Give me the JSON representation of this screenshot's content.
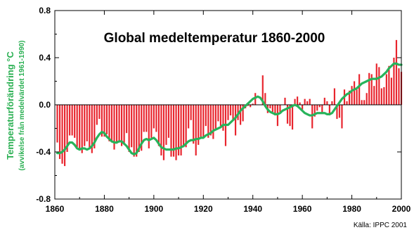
{
  "chart_data": {
    "type": "bar",
    "title": "Global medeltemperatur 1860-2000",
    "ylabel": "Temperaturförändring °C",
    "ylabel_sub": "(avvikelse från medelvärdet 1961-1990)",
    "source": "Källa: IPPC 2001",
    "xlim": [
      1860,
      2000
    ],
    "ylim": [
      -0.8,
      0.8
    ],
    "x_ticks": [
      1860,
      1880,
      1900,
      1920,
      1940,
      1960,
      1980,
      2000
    ],
    "y_ticks": [
      -0.8,
      -0.4,
      0.0,
      0.4,
      0.8
    ],
    "y_tick_labels": [
      "-0.8",
      "-0.4",
      "0.0",
      "0.4",
      "0.8"
    ],
    "grid": false,
    "colors": {
      "bars": "#e8252e",
      "smooth_line": "#27b35a",
      "axis": "#000000"
    },
    "series": [
      {
        "kind": "bar",
        "x": [
          1861,
          1862,
          1863,
          1864,
          1865,
          1866,
          1867,
          1868,
          1869,
          1870,
          1871,
          1872,
          1873,
          1874,
          1875,
          1876,
          1877,
          1878,
          1879,
          1880,
          1881,
          1882,
          1883,
          1884,
          1885,
          1886,
          1887,
          1888,
          1889,
          1890,
          1891,
          1892,
          1893,
          1894,
          1895,
          1896,
          1897,
          1898,
          1899,
          1900,
          1901,
          1902,
          1903,
          1904,
          1905,
          1906,
          1907,
          1908,
          1909,
          1910,
          1911,
          1912,
          1913,
          1914,
          1915,
          1916,
          1917,
          1918,
          1919,
          1920,
          1921,
          1922,
          1923,
          1924,
          1925,
          1926,
          1927,
          1928,
          1929,
          1930,
          1931,
          1932,
          1933,
          1934,
          1935,
          1936,
          1937,
          1938,
          1939,
          1940,
          1941,
          1942,
          1943,
          1944,
          1945,
          1946,
          1947,
          1948,
          1949,
          1950,
          1951,
          1952,
          1953,
          1954,
          1955,
          1956,
          1957,
          1958,
          1959,
          1960,
          1961,
          1962,
          1963,
          1964,
          1965,
          1966,
          1967,
          1968,
          1969,
          1970,
          1971,
          1972,
          1973,
          1974,
          1975,
          1976,
          1977,
          1978,
          1979,
          1980,
          1981,
          1982,
          1983,
          1984,
          1985,
          1986,
          1987,
          1988,
          1989,
          1990,
          1991,
          1992,
          1993,
          1994,
          1995,
          1996,
          1997,
          1998,
          1999,
          2000
        ],
        "values": [
          -0.32,
          -0.46,
          -0.5,
          -0.52,
          -0.4,
          -0.26,
          -0.26,
          -0.28,
          -0.36,
          -0.38,
          -0.41,
          -0.35,
          -0.31,
          -0.36,
          -0.41,
          -0.37,
          -0.17,
          -0.12,
          -0.27,
          -0.27,
          -0.25,
          -0.31,
          -0.32,
          -0.38,
          -0.33,
          -0.32,
          -0.35,
          -0.34,
          -0.24,
          -0.4,
          -0.36,
          -0.44,
          -0.44,
          -0.4,
          -0.39,
          -0.23,
          -0.23,
          -0.37,
          -0.28,
          -0.2,
          -0.23,
          -0.35,
          -0.43,
          -0.47,
          -0.34,
          -0.28,
          -0.44,
          -0.44,
          -0.47,
          -0.43,
          -0.43,
          -0.36,
          -0.36,
          -0.2,
          -0.13,
          -0.33,
          -0.43,
          -0.34,
          -0.28,
          -0.27,
          -0.18,
          -0.28,
          -0.26,
          -0.29,
          -0.21,
          -0.14,
          -0.18,
          -0.22,
          -0.35,
          -0.13,
          -0.09,
          -0.13,
          -0.26,
          -0.13,
          -0.17,
          -0.14,
          -0.03,
          -0.01,
          -0.02,
          0.01,
          0.1,
          0.0,
          0.0,
          0.25,
          0.1,
          -0.07,
          -0.03,
          -0.06,
          -0.09,
          -0.18,
          -0.06,
          0.0,
          0.06,
          -0.16,
          -0.18,
          -0.21,
          0.05,
          0.07,
          0.02,
          -0.04,
          0.05,
          0.03,
          0.05,
          -0.2,
          -0.1,
          -0.05,
          -0.02,
          -0.07,
          0.06,
          0.03,
          -0.09,
          0.03,
          0.14,
          -0.12,
          -0.11,
          -0.2,
          0.13,
          0.03,
          0.12,
          0.16,
          0.2,
          0.13,
          0.26,
          0.04,
          0.04,
          0.1,
          0.27,
          0.26,
          0.16,
          0.35,
          0.32,
          0.14,
          0.15,
          0.26,
          0.33,
          0.23,
          0.4,
          0.55,
          0.31,
          0.28
        ]
      },
      {
        "kind": "line",
        "x": [
          1861,
          1862,
          1863,
          1864,
          1865,
          1866,
          1867,
          1868,
          1869,
          1870,
          1871,
          1872,
          1873,
          1874,
          1875,
          1876,
          1877,
          1878,
          1879,
          1880,
          1881,
          1882,
          1883,
          1884,
          1885,
          1886,
          1887,
          1888,
          1889,
          1890,
          1891,
          1892,
          1893,
          1894,
          1895,
          1896,
          1897,
          1898,
          1899,
          1900,
          1901,
          1902,
          1903,
          1904,
          1905,
          1906,
          1907,
          1908,
          1909,
          1910,
          1911,
          1912,
          1913,
          1914,
          1915,
          1916,
          1917,
          1918,
          1919,
          1920,
          1921,
          1922,
          1923,
          1924,
          1925,
          1926,
          1927,
          1928,
          1929,
          1930,
          1931,
          1932,
          1933,
          1934,
          1935,
          1936,
          1937,
          1938,
          1939,
          1940,
          1941,
          1942,
          1943,
          1944,
          1945,
          1946,
          1947,
          1948,
          1949,
          1950,
          1951,
          1952,
          1953,
          1954,
          1955,
          1956,
          1957,
          1958,
          1959,
          1960,
          1961,
          1962,
          1963,
          1964,
          1965,
          1966,
          1967,
          1968,
          1969,
          1970,
          1971,
          1972,
          1973,
          1974,
          1975,
          1976,
          1977,
          1978,
          1979,
          1980,
          1981,
          1982,
          1983,
          1984,
          1985,
          1986,
          1987,
          1988,
          1989,
          1990,
          1991,
          1992,
          1993,
          1994,
          1995,
          1996,
          1997,
          1998,
          1999,
          2000
        ],
        "values": [
          -0.41,
          -0.41,
          -0.4,
          -0.38,
          -0.35,
          -0.32,
          -0.32,
          -0.34,
          -0.37,
          -0.38,
          -0.37,
          -0.37,
          -0.38,
          -0.37,
          -0.35,
          -0.32,
          -0.28,
          -0.25,
          -0.23,
          -0.24,
          -0.27,
          -0.29,
          -0.31,
          -0.32,
          -0.32,
          -0.31,
          -0.31,
          -0.33,
          -0.35,
          -0.38,
          -0.41,
          -0.42,
          -0.41,
          -0.37,
          -0.33,
          -0.3,
          -0.29,
          -0.3,
          -0.29,
          -0.28,
          -0.3,
          -0.33,
          -0.36,
          -0.37,
          -0.38,
          -0.38,
          -0.38,
          -0.38,
          -0.37,
          -0.37,
          -0.36,
          -0.35,
          -0.33,
          -0.31,
          -0.3,
          -0.3,
          -0.29,
          -0.29,
          -0.28,
          -0.28,
          -0.26,
          -0.25,
          -0.24,
          -0.22,
          -0.21,
          -0.2,
          -0.19,
          -0.17,
          -0.17,
          -0.17,
          -0.15,
          -0.13,
          -0.11,
          -0.08,
          -0.05,
          -0.03,
          -0.01,
          0.01,
          0.03,
          0.05,
          0.06,
          0.07,
          0.06,
          0.03,
          -0.01,
          -0.04,
          -0.06,
          -0.07,
          -0.08,
          -0.08,
          -0.07,
          -0.05,
          -0.04,
          -0.03,
          -0.02,
          -0.01,
          0.0,
          -0.01,
          -0.03,
          -0.05,
          -0.07,
          -0.08,
          -0.09,
          -0.09,
          -0.08,
          -0.07,
          -0.07,
          -0.07,
          -0.07,
          -0.08,
          -0.08,
          -0.07,
          -0.04,
          -0.01,
          0.02,
          0.05,
          0.07,
          0.09,
          0.1,
          0.12,
          0.13,
          0.14,
          0.16,
          0.18,
          0.19,
          0.2,
          0.21,
          0.22,
          0.22,
          0.22,
          0.23,
          0.24,
          0.26,
          0.28,
          0.31,
          0.33,
          0.35,
          0.35,
          0.34,
          0.34
        ]
      }
    ]
  }
}
